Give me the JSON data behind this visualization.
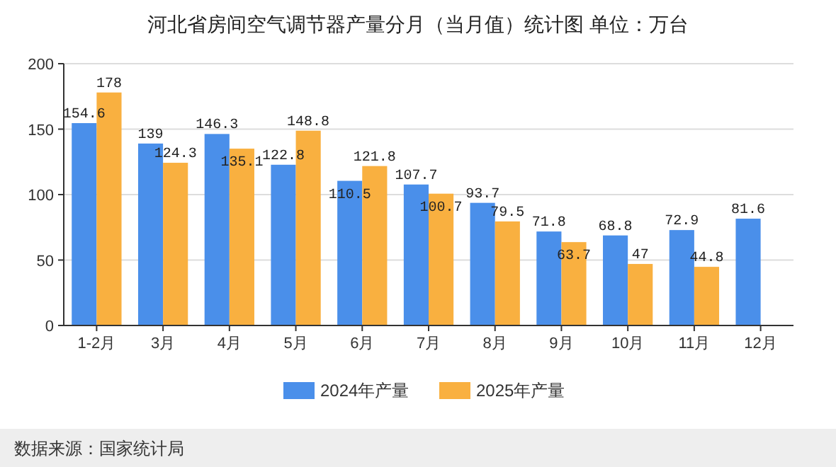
{
  "chart_data": {
    "type": "bar",
    "title": "河北省房间空气调节器产量分月（当月值）统计图 单位：万台",
    "categories": [
      "1-2月",
      "3月",
      "4月",
      "5月",
      "6月",
      "7月",
      "8月",
      "9月",
      "10月",
      "11月",
      "12月"
    ],
    "series": [
      {
        "name": "2024年产量",
        "color": "#4a8fea",
        "values": [
          154.6,
          139,
          146.3,
          122.8,
          110.5,
          107.7,
          93.7,
          71.8,
          68.8,
          72.9,
          81.6
        ]
      },
      {
        "name": "2025年产量",
        "color": "#f9b040",
        "values": [
          178,
          124.3,
          135.1,
          148.8,
          121.8,
          100.7,
          79.5,
          63.7,
          47,
          44.8,
          null
        ]
      }
    ],
    "ylim": [
      0,
      200
    ],
    "yticks": [
      0,
      50,
      100,
      150,
      200
    ],
    "grid": "y",
    "legend": "bottom",
    "data_labels": true,
    "annotations": [
      "数据来源：国家统计局"
    ]
  }
}
